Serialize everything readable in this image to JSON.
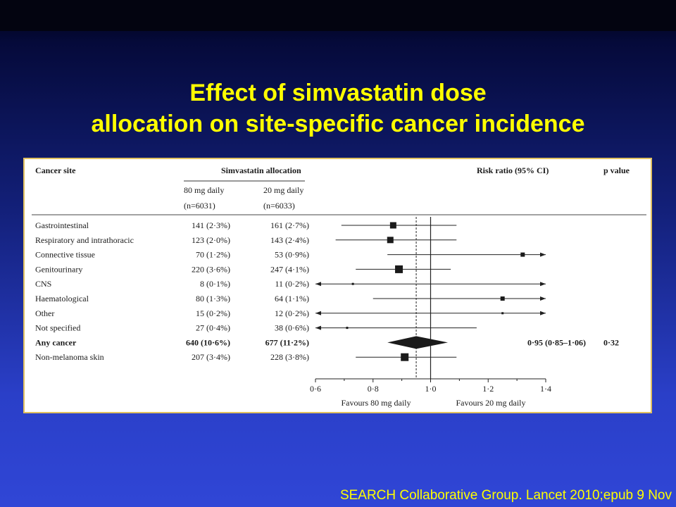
{
  "slide": {
    "title_line1": "Effect of simvastatin dose",
    "title_line2": "allocation on site-specific cancer incidence",
    "citation": "SEARCH Collaborative Group. Lancet 2010;epub 9 Nov"
  },
  "chart_data": {
    "type": "forest",
    "headers": {
      "site": "Cancer site",
      "allocation": "Simvastatin allocation",
      "group1_line1": "80 mg daily",
      "group1_line2": "(n=6031)",
      "group2_line1": "20 mg daily",
      "group2_line2": "(n=6033)",
      "risk_ratio": "Risk ratio (95% CI)",
      "pvalue": "p value"
    },
    "rows": [
      {
        "site": "Gastrointestinal",
        "g80": "141 (2·3%)",
        "g20": "161 (2·7%)",
        "rr": 0.87,
        "lo": 0.69,
        "hi": 1.09,
        "size": "m"
      },
      {
        "site": "Respiratory and intrathoracic",
        "g80": "123 (2·0%)",
        "g20": "143 (2·4%)",
        "rr": 0.86,
        "lo": 0.67,
        "hi": 1.09,
        "size": "m"
      },
      {
        "site": "Connective tissue",
        "g80": "70 (1·2%)",
        "g20": "53 (0·9%)",
        "rr": 1.32,
        "lo": 0.85,
        "hi": 1.4,
        "arrow_hi": true,
        "size": "s"
      },
      {
        "site": "Genitourinary",
        "g80": "220 (3·6%)",
        "g20": "247 (4·1%)",
        "rr": 0.89,
        "lo": 0.74,
        "hi": 1.07,
        "size": "l"
      },
      {
        "site": "CNS",
        "g80": "8 (0·1%)",
        "g20": "11 (0·2%)",
        "rr": 0.73,
        "lo": 0.6,
        "hi": 1.4,
        "arrow_lo": true,
        "arrow_hi": true,
        "size": "xs"
      },
      {
        "site": "Haematological",
        "g80": "80 (1·3%)",
        "g20": "64 (1·1%)",
        "rr": 1.25,
        "lo": 0.8,
        "hi": 1.4,
        "arrow_hi": true,
        "size": "s"
      },
      {
        "site": "Other",
        "g80": "15 (0·2%)",
        "g20": "12 (0·2%)",
        "rr": 1.25,
        "lo": 0.6,
        "hi": 1.4,
        "arrow_lo": true,
        "arrow_hi": true,
        "size": "xs"
      },
      {
        "site": "Not specified",
        "g80": "27 (0·4%)",
        "g20": "38 (0·6%)",
        "rr": 0.71,
        "lo": 0.6,
        "hi": 1.16,
        "arrow_lo": true,
        "size": "xs"
      },
      {
        "site": "Any cancer",
        "g80": "640 (10·6%)",
        "g20": "677 (11·2%)",
        "rr": 0.95,
        "lo": 0.85,
        "hi": 1.06,
        "diamond": true,
        "bold": true,
        "rr_text": "0·95 (0·85–1·06)",
        "p": "0·32"
      },
      {
        "site": "Non-melanoma skin",
        "g80": "207 (3·4%)",
        "g20": "228 (3·8%)",
        "rr": 0.91,
        "lo": 0.74,
        "hi": 1.09,
        "size": "l"
      }
    ],
    "x_axis": {
      "ticks": [
        0.6,
        0.8,
        1.0,
        1.2,
        1.4
      ],
      "tick_labels": [
        "0·6",
        "0·8",
        "1·0",
        "1·2",
        "1·4"
      ],
      "xlim": [
        0.6,
        1.4
      ],
      "left_label": "Favours 80 mg daily",
      "right_label": "Favours 20 mg daily"
    },
    "reference_line": 1.0,
    "overall_line": 0.95
  }
}
